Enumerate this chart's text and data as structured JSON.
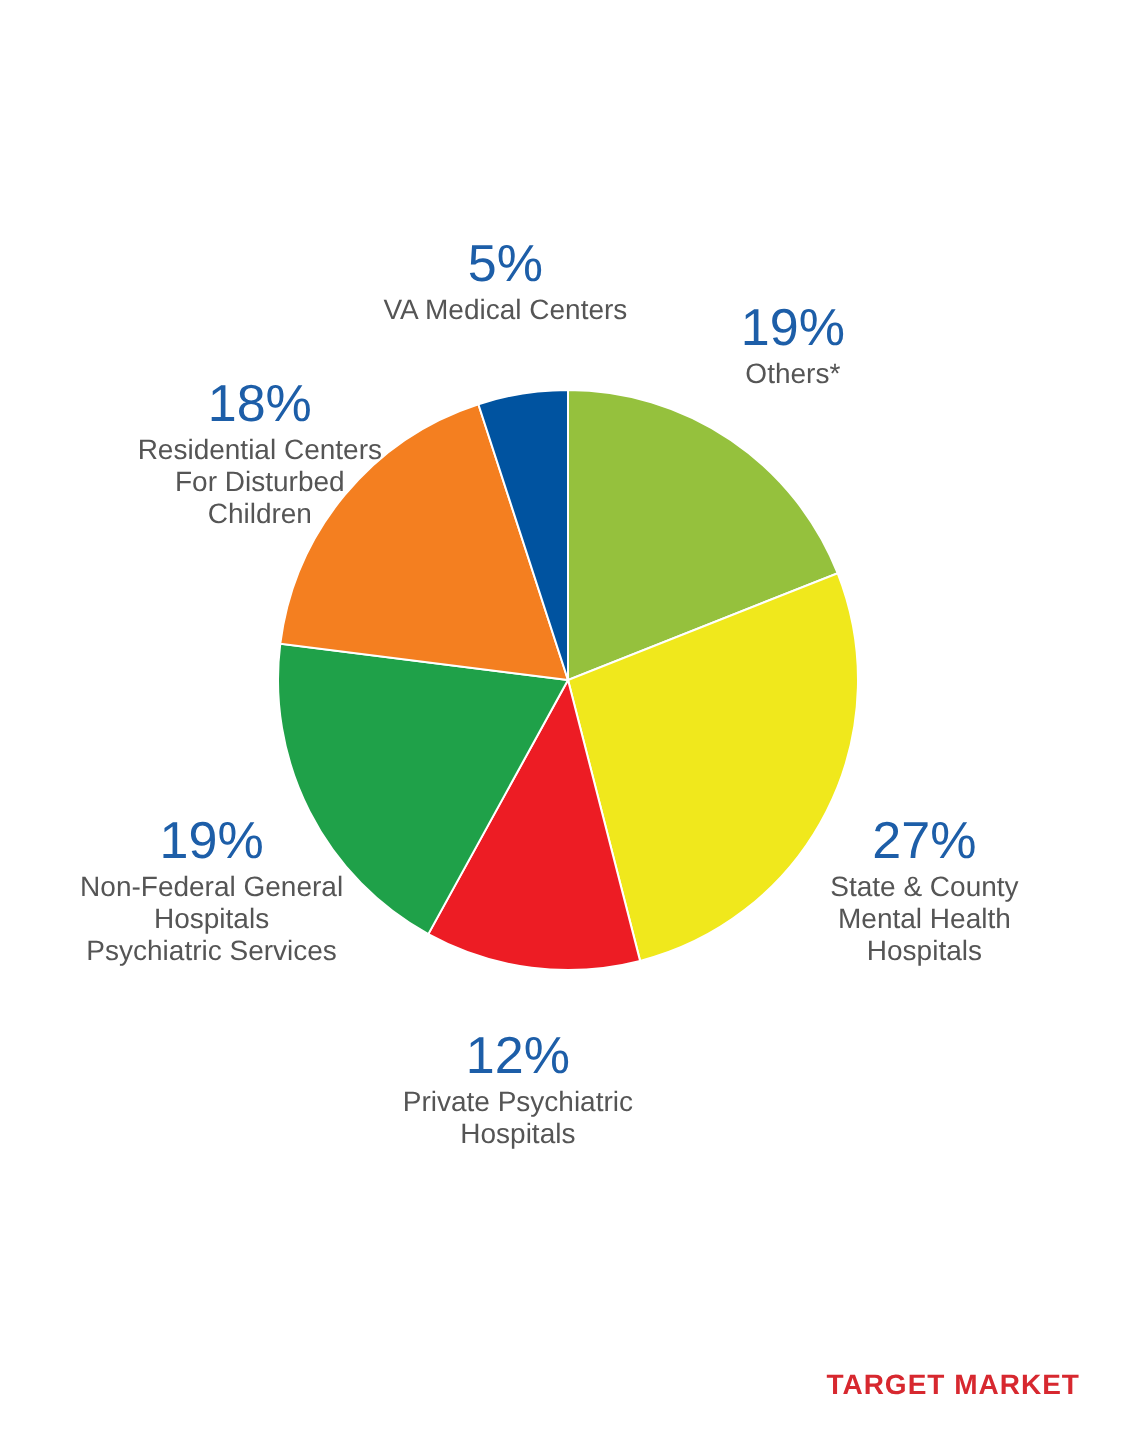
{
  "chart_data": {
    "type": "pie",
    "categories": [
      "Others*",
      "State & County Mental Health Hospitals",
      "Private Psychiatric Hospitals",
      "Non-Federal General Hospitals Psychiatric Services",
      "Residential Centers For Disturbed Children",
      "VA Medical Centers"
    ],
    "values": [
      19,
      27,
      12,
      19,
      18,
      5
    ],
    "colors": [
      "#95c13d",
      "#f0e81c",
      "#ed1c24",
      "#1fa149",
      "#f47f20",
      "#0053a0"
    ],
    "value_labels": [
      "19%",
      "27%",
      "12%",
      "19%",
      "18%",
      "5%"
    ],
    "annotations": [
      "TARGET MARKET"
    ],
    "legend": false
  }
}
